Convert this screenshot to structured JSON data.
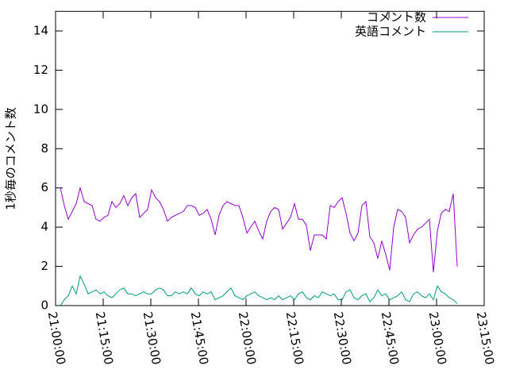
{
  "chart_data": {
    "type": "line",
    "ylabel": "1秒毎のコメント数",
    "x": [
      "21:01:30",
      "21:02:45",
      "21:04:00",
      "21:05:15",
      "21:06:30",
      "21:07:45",
      "21:09:00",
      "21:10:15",
      "21:11:30",
      "21:12:45",
      "21:14:00",
      "21:15:15",
      "21:16:30",
      "21:17:45",
      "21:19:00",
      "21:20:15",
      "21:21:30",
      "21:22:45",
      "21:24:00",
      "21:25:15",
      "21:26:30",
      "21:27:45",
      "21:29:00",
      "21:30:15",
      "21:31:30",
      "21:32:45",
      "21:34:00",
      "21:35:15",
      "21:36:30",
      "21:37:45",
      "21:39:00",
      "21:40:15",
      "21:41:30",
      "21:42:45",
      "21:44:00",
      "21:45:15",
      "21:46:30",
      "21:47:45",
      "21:49:00",
      "21:50:15",
      "21:51:30",
      "21:52:45",
      "21:54:00",
      "21:55:15",
      "21:56:30",
      "21:57:45",
      "21:59:00",
      "22:00:15",
      "22:01:30",
      "22:02:45",
      "22:04:00",
      "22:05:15",
      "22:06:30",
      "22:07:45",
      "22:09:00",
      "22:10:15",
      "22:11:30",
      "22:12:45",
      "22:14:00",
      "22:15:15",
      "22:16:30",
      "22:17:45",
      "22:19:00",
      "22:20:15",
      "22:21:30",
      "22:22:45",
      "22:24:00",
      "22:25:15",
      "22:26:30",
      "22:27:45",
      "22:29:00",
      "22:30:15",
      "22:31:30",
      "22:32:45",
      "22:34:00",
      "22:35:15",
      "22:36:30",
      "22:37:45",
      "22:39:00",
      "22:40:15",
      "22:41:30",
      "22:42:45",
      "22:44:00",
      "22:45:15",
      "22:46:30",
      "22:47:45",
      "22:49:00",
      "22:50:15",
      "22:51:30",
      "22:52:45",
      "22:54:00",
      "22:55:15",
      "22:56:30",
      "22:57:45",
      "22:59:00",
      "23:00:15",
      "23:01:30",
      "23:02:45",
      "23:04:00",
      "23:05:15",
      "23:06:30"
    ],
    "series": [
      {
        "name": "コメント数",
        "color": "#9400d3",
        "values": [
          6.0,
          5.1,
          4.4,
          4.8,
          5.2,
          6.0,
          5.3,
          5.2,
          5.1,
          4.4,
          4.3,
          4.5,
          4.6,
          5.3,
          5.0,
          5.2,
          5.6,
          5.1,
          5.5,
          5.7,
          4.5,
          4.7,
          4.9,
          5.9,
          5.5,
          5.3,
          4.9,
          4.3,
          4.5,
          4.6,
          4.7,
          4.8,
          5.1,
          5.1,
          5.0,
          4.6,
          4.7,
          4.9,
          4.4,
          3.6,
          4.6,
          5.1,
          5.3,
          5.2,
          5.1,
          5.1,
          4.5,
          3.7,
          4.0,
          4.3,
          3.8,
          3.4,
          4.3,
          4.8,
          5.0,
          4.9,
          3.9,
          4.2,
          4.5,
          5.2,
          4.4,
          4.4,
          4.1,
          2.8,
          3.6,
          3.6,
          3.6,
          3.4,
          5.1,
          5.0,
          5.3,
          5.5,
          4.7,
          3.7,
          3.3,
          3.7,
          5.1,
          5.3,
          3.5,
          3.2,
          2.4,
          3.3,
          2.6,
          1.8,
          4.0,
          4.9,
          4.8,
          4.5,
          3.2,
          3.6,
          3.9,
          4.0,
          4.2,
          4.4,
          1.7,
          3.8,
          4.7,
          4.9,
          4.8,
          5.7,
          2.0
        ]
      },
      {
        "name": "英語コメント",
        "color": "#009e73",
        "values": [
          0.0,
          0.3,
          0.5,
          1.0,
          0.6,
          1.5,
          1.1,
          0.6,
          0.7,
          0.8,
          0.6,
          0.7,
          0.5,
          0.4,
          0.6,
          0.8,
          0.9,
          0.6,
          0.6,
          0.5,
          0.6,
          0.7,
          0.6,
          0.6,
          0.8,
          0.9,
          0.8,
          0.5,
          0.5,
          0.7,
          0.6,
          0.7,
          0.6,
          0.9,
          0.6,
          0.5,
          0.7,
          0.6,
          0.7,
          0.3,
          0.4,
          0.5,
          0.7,
          0.9,
          0.5,
          0.4,
          0.3,
          0.5,
          0.6,
          0.7,
          0.5,
          0.4,
          0.3,
          0.4,
          0.3,
          0.5,
          0.3,
          0.4,
          0.5,
          0.3,
          0.6,
          0.7,
          0.4,
          0.3,
          0.5,
          0.4,
          0.7,
          0.6,
          0.5,
          0.6,
          0.3,
          0.3,
          0.7,
          0.8,
          0.4,
          0.3,
          0.5,
          0.6,
          0.2,
          0.4,
          0.8,
          0.5,
          0.6,
          0.3,
          0.4,
          0.5,
          0.7,
          0.3,
          0.2,
          0.6,
          0.7,
          0.5,
          0.4,
          0.6,
          0.3,
          1.0,
          0.7,
          0.6,
          0.4,
          0.3,
          0.1
        ]
      }
    ],
    "xlim": [
      "21:00:00",
      "23:15:00"
    ],
    "xticks": [
      "21:00:00",
      "21:15:00",
      "21:30:00",
      "21:45:00",
      "22:00:00",
      "22:15:00",
      "22:30:00",
      "22:45:00",
      "23:00:00",
      "23:15:00"
    ],
    "ylim": [
      0,
      15
    ],
    "yticks": [
      0,
      2,
      4,
      6,
      8,
      10,
      12,
      14
    ],
    "legend": "top-right"
  }
}
